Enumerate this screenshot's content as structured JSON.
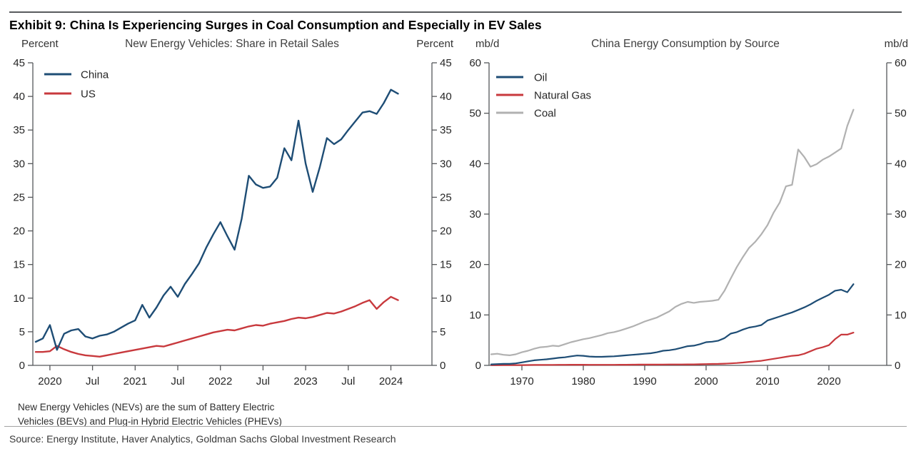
{
  "page": {
    "title": "Exhibit 9: China Is Experiencing Surges in Coal Consumption and Especially in EV Sales"
  },
  "footnote": {
    "line1": "New Energy Vehicles (NEVs) are the sum of Battery Electric",
    "line2": "Vehicles (BEVs) and Plug-in Hybrid Electric Vehicles (PHEVs)"
  },
  "source": "Source: Energy Institute, Haver Analytics, Goldman Sachs Global Investment Research",
  "colors": {
    "navy": "#1e4d75",
    "red": "#c8393d",
    "gray": "#b1b1b1",
    "axis": "#55575a",
    "text": "#262626"
  },
  "chart_data": [
    {
      "type": "line",
      "title": "New Energy Vehicles: Share in Retail Sales",
      "unit_left": "Percent",
      "unit_right": "Percent",
      "ylim": [
        0,
        45
      ],
      "ystep": 5,
      "grid": false,
      "legend_position": "top-left",
      "x_start": "2019-11",
      "x_frequency": "monthly",
      "x_tick_labels": [
        "2020",
        "Jul",
        "2021",
        "Jul",
        "2022",
        "Jul",
        "2023",
        "Jul",
        "2024"
      ],
      "x_tick_month_index": [
        2,
        8,
        14,
        20,
        26,
        32,
        38,
        44,
        50
      ],
      "series": [
        {
          "name": "China",
          "color": "#1e4d75",
          "values": [
            3.5,
            4.0,
            6.0,
            2.3,
            4.7,
            5.2,
            5.4,
            4.3,
            4.0,
            4.4,
            4.6,
            5.0,
            5.6,
            6.2,
            6.7,
            9.0,
            7.1,
            8.6,
            10.4,
            11.7,
            10.2,
            12.1,
            13.6,
            15.2,
            17.5,
            19.5,
            21.3,
            19.2,
            17.2,
            21.8,
            28.2,
            26.9,
            26.4,
            26.6,
            27.9,
            32.3,
            30.5,
            36.4,
            30.0,
            25.8,
            29.5,
            33.8,
            32.9,
            33.6,
            35.0,
            36.3,
            37.6,
            37.8,
            37.4,
            39.0,
            41.0,
            40.4
          ]
        },
        {
          "name": "US",
          "color": "#c8393d",
          "values": [
            2.0,
            2.0,
            2.1,
            2.9,
            2.4,
            2.0,
            1.7,
            1.5,
            1.4,
            1.3,
            1.5,
            1.7,
            1.9,
            2.1,
            2.3,
            2.5,
            2.7,
            2.9,
            2.8,
            3.1,
            3.4,
            3.7,
            4.0,
            4.3,
            4.6,
            4.9,
            5.1,
            5.3,
            5.2,
            5.5,
            5.8,
            6.0,
            5.9,
            6.2,
            6.4,
            6.6,
            6.9,
            7.1,
            7.0,
            7.2,
            7.5,
            7.8,
            7.7,
            8.0,
            8.4,
            8.8,
            9.3,
            9.7,
            8.4,
            9.4,
            10.2,
            9.7
          ]
        }
      ]
    },
    {
      "type": "line",
      "title": "China Energy Consumption by Source",
      "unit_left": "mb/d",
      "unit_right": "mb/d",
      "ylim": [
        0,
        60
      ],
      "ystep": 10,
      "grid": false,
      "legend_position": "top-left",
      "x_start": 1965,
      "x_frequency": "annual",
      "x_tick_labels": [
        "1970",
        "1980",
        "1990",
        "2000",
        "2010",
        "2020"
      ],
      "x_tick_years": [
        1970,
        1980,
        1990,
        2000,
        2010,
        2020
      ],
      "series": [
        {
          "name": "Oil",
          "color": "#1e4d75",
          "values": [
            0.2,
            0.25,
            0.3,
            0.3,
            0.4,
            0.6,
            0.8,
            1.0,
            1.1,
            1.2,
            1.35,
            1.5,
            1.6,
            1.8,
            1.95,
            1.9,
            1.75,
            1.7,
            1.7,
            1.75,
            1.8,
            1.9,
            2.0,
            2.1,
            2.2,
            2.3,
            2.4,
            2.6,
            2.9,
            3.0,
            3.2,
            3.5,
            3.8,
            3.9,
            4.2,
            4.6,
            4.7,
            4.9,
            5.4,
            6.3,
            6.6,
            7.1,
            7.5,
            7.7,
            8.0,
            8.9,
            9.3,
            9.7,
            10.1,
            10.5,
            11.0,
            11.5,
            12.1,
            12.8,
            13.4,
            14.0,
            14.8,
            15.0,
            14.5,
            16.1
          ]
        },
        {
          "name": "Natural Gas",
          "color": "#c8393d",
          "values": [
            0.03,
            0.03,
            0.04,
            0.04,
            0.05,
            0.06,
            0.07,
            0.08,
            0.09,
            0.1,
            0.1,
            0.11,
            0.12,
            0.13,
            0.13,
            0.13,
            0.12,
            0.12,
            0.12,
            0.12,
            0.12,
            0.13,
            0.13,
            0.14,
            0.15,
            0.15,
            0.15,
            0.16,
            0.17,
            0.18,
            0.18,
            0.19,
            0.2,
            0.2,
            0.22,
            0.25,
            0.28,
            0.3,
            0.34,
            0.4,
            0.47,
            0.56,
            0.7,
            0.8,
            0.9,
            1.1,
            1.3,
            1.5,
            1.7,
            1.9,
            2.0,
            2.3,
            2.8,
            3.3,
            3.6,
            4.0,
            5.2,
            6.1,
            6.1,
            6.5
          ]
        },
        {
          "name": "Coal",
          "color": "#b1b1b1",
          "values": [
            2.2,
            2.3,
            2.1,
            2.0,
            2.2,
            2.6,
            2.9,
            3.3,
            3.6,
            3.7,
            3.9,
            3.8,
            4.2,
            4.6,
            4.9,
            5.2,
            5.4,
            5.7,
            6.0,
            6.4,
            6.6,
            6.9,
            7.3,
            7.7,
            8.2,
            8.7,
            9.1,
            9.5,
            10.1,
            10.7,
            11.6,
            12.2,
            12.6,
            12.4,
            12.6,
            12.7,
            12.8,
            13.0,
            14.8,
            17.2,
            19.5,
            21.5,
            23.3,
            24.5,
            26.0,
            27.8,
            30.3,
            32.3,
            35.5,
            35.8,
            42.8,
            41.3,
            39.4,
            39.9,
            40.8,
            41.4,
            42.2,
            43.0,
            47.5,
            50.7
          ]
        }
      ]
    }
  ]
}
